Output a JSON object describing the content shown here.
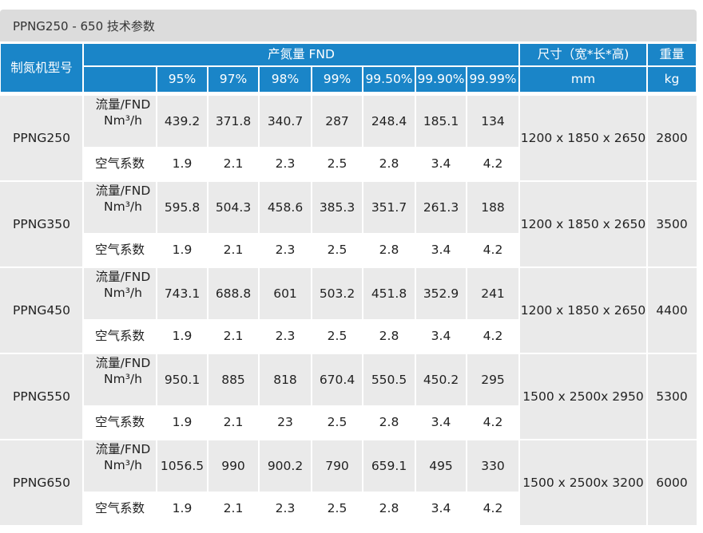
{
  "title": "PPNG250 - 650 技术参数",
  "header": {
    "model": "制氮机型号",
    "output": "产氮量 FND",
    "size": "尺寸（宽*长*高)",
    "weight": "重量",
    "purities": [
      "95%",
      "97%",
      "98%",
      "99%",
      "99.50%",
      "99.90%",
      "99.99%"
    ],
    "size_unit": "mm",
    "weight_unit": "kg"
  },
  "row_labels": {
    "flow_line1": "流量/FND",
    "flow_line2": "Nm³/h",
    "air": "空气系数"
  },
  "rows": [
    {
      "model": "PPNG250",
      "flow": [
        "439.2",
        "371.8",
        "340.7",
        "287",
        "248.4",
        "185.1",
        "134"
      ],
      "air": [
        "1.9",
        "2.1",
        "2.3",
        "2.5",
        "2.8",
        "3.4",
        "4.2"
      ],
      "size": "1200 x 1850 x 2650",
      "weight": "2800"
    },
    {
      "model": "PPNG350",
      "flow": [
        "595.8",
        "504.3",
        "458.6",
        "385.3",
        "351.7",
        "261.3",
        "188"
      ],
      "air": [
        "1.9",
        "2.1",
        "2.3",
        "2.5",
        "2.8",
        "3.4",
        "4.2"
      ],
      "size": "1200 x 1850 x 2650",
      "weight": "3500"
    },
    {
      "model": "PPNG450",
      "flow": [
        "743.1",
        "688.8",
        "601",
        "503.2",
        "451.8",
        "352.9",
        "241"
      ],
      "air": [
        "1.9",
        "2.1",
        "2.3",
        "2.5",
        "2.8",
        "3.4",
        "4.2"
      ],
      "size": "1200 x 1850 x 2650",
      "weight": "4400"
    },
    {
      "model": "PPNG550",
      "flow": [
        "950.1",
        "885",
        "818",
        "670.4",
        "550.5",
        "450.2",
        "295"
      ],
      "air": [
        "1.9",
        "2.1",
        "23",
        "2.5",
        "2.8",
        "3.4",
        "4.2"
      ],
      "size": "1500 x 2500x 2950",
      "weight": "5300"
    },
    {
      "model": "PPNG650",
      "flow": [
        "1056.5",
        "990",
        "900.2",
        "790",
        "659.1",
        "495",
        "330"
      ],
      "air": [
        "1.9",
        "2.1",
        "2.3",
        "2.5",
        "2.8",
        "3.4",
        "4.2"
      ],
      "size": "1500 x 2500x 3200",
      "weight": "6000"
    }
  ],
  "colors": {
    "header_bg": "#1a85c8",
    "stripe_bg": "#eaeaea",
    "title_bg": "#dcdcdc"
  }
}
